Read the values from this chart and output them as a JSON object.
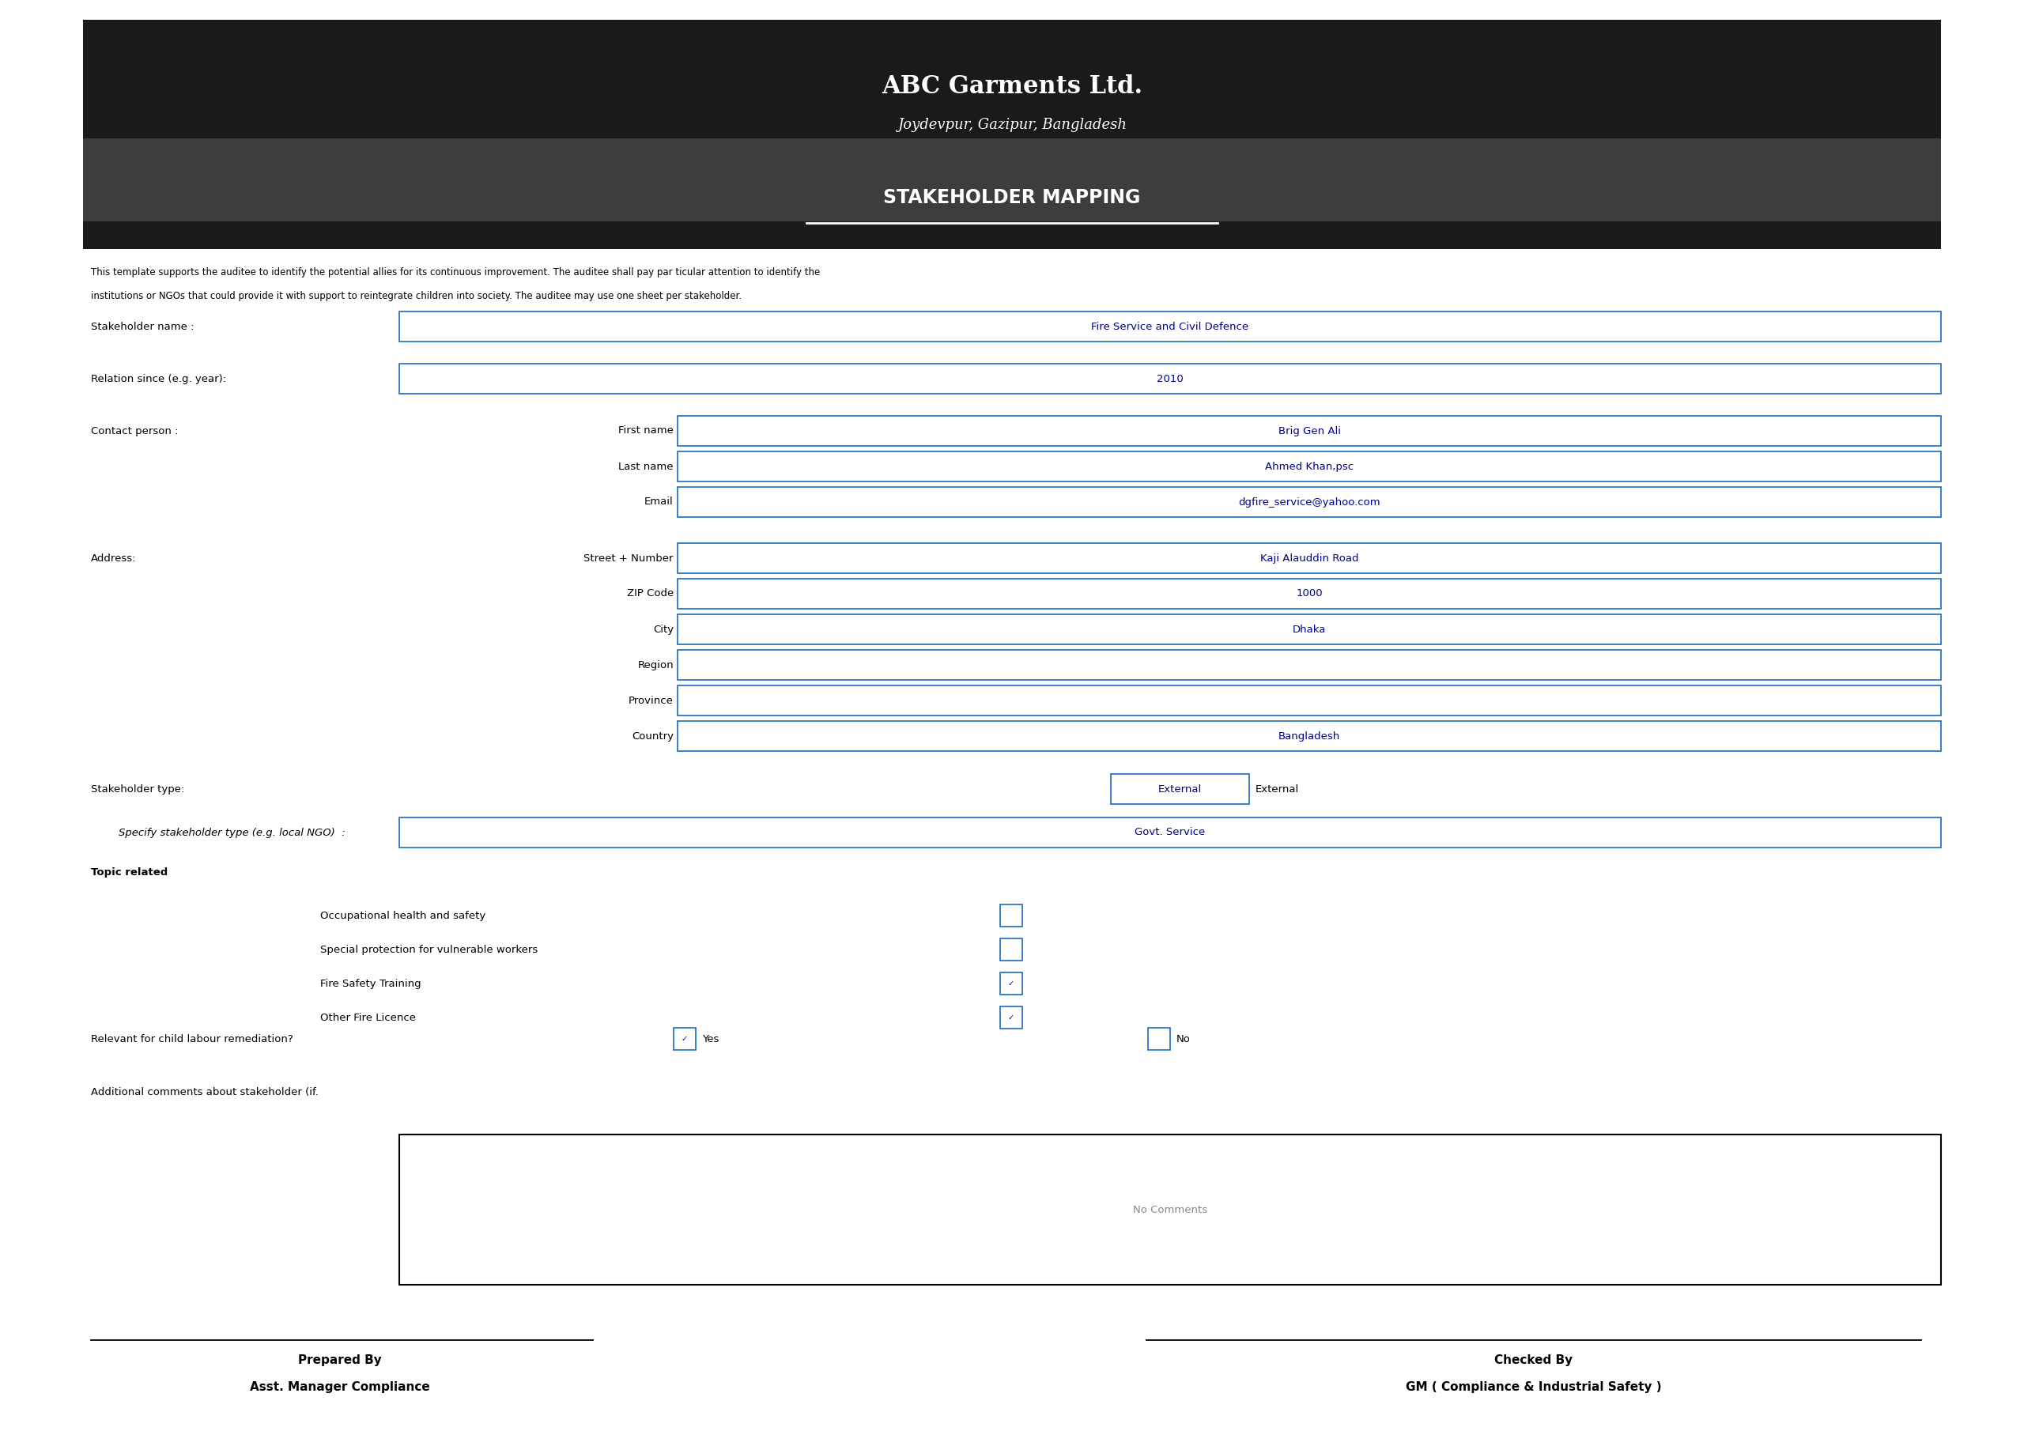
{
  "title1": "ABC Garments Ltd.",
  "title2": "Joydevpur, Gazipur, Bangladesh",
  "title3": "STAKEHOLDER MAPPING",
  "description_line1": "This template supports the auditee to identify the potential allies for its continuous improvement. The auditee shall pay par ticular attention to identify the",
  "description_line2": "institutions or NGOs that could provide it with support to reintegrate children into society. The auditee may use one sheet per stakeholder.",
  "stakeholder_name_label": "Stakeholder name :",
  "stakeholder_name_value": "Fire Service and Civil Defence",
  "relation_label": "Relation since (e.g. year):",
  "relation_value": "2010",
  "contact_label": "Contact person :",
  "first_name_label": "First name",
  "first_name_value": "Brig Gen Ali",
  "last_name_label": "Last name",
  "last_name_value": "Ahmed Khan,psc",
  "email_label": "Email",
  "email_value": "dgfire_service@yahoo.com",
  "address_label": "Address:",
  "street_label": "Street + Number",
  "street_value": "Kaji Alauddin Road",
  "zip_label": "ZIP Code",
  "zip_value": "1000",
  "city_label": "City",
  "city_value": "Dhaka",
  "region_label": "Region",
  "region_value": "",
  "province_label": "Province",
  "province_value": "",
  "country_label": "Country",
  "country_value": "Bangladesh",
  "stakeholder_type_label": "Stakeholder type:",
  "stakeholder_type_box": "External",
  "stakeholder_type_text": "External",
  "specify_label": "Specify stakeholder type (e.g. local NGO)  :",
  "specify_value": "Govt. Service",
  "topic_label": "Topic related",
  "topics": [
    "Occupational health and safety",
    "Special protection for vulnerable workers",
    "Fire Safety Training",
    "Other Fire Licence"
  ],
  "topic_checked": [
    false,
    false,
    true,
    true
  ],
  "relevant_label": "Relevant for child labour remediation?",
  "relevant_yes": "Yes",
  "relevant_no": "No",
  "relevant_checked": true,
  "comments_label": "Additional comments about stakeholder (if.",
  "comments_value": "No Comments",
  "prepared_by": "Prepared By",
  "prepared_role": "Asst. Manager Compliance",
  "checked_by": "Checked By",
  "checked_role": "GM ( Compliance & Industrial Safety )",
  "header_dark_color": "#1a1a1a",
  "header_mid_color": "#3d3d3d",
  "header_text_color": "#ffffff",
  "box_border_color": "#1a6bbf",
  "background_color": "#ffffff",
  "text_color": "#000000",
  "value_text_color": "#00008B"
}
